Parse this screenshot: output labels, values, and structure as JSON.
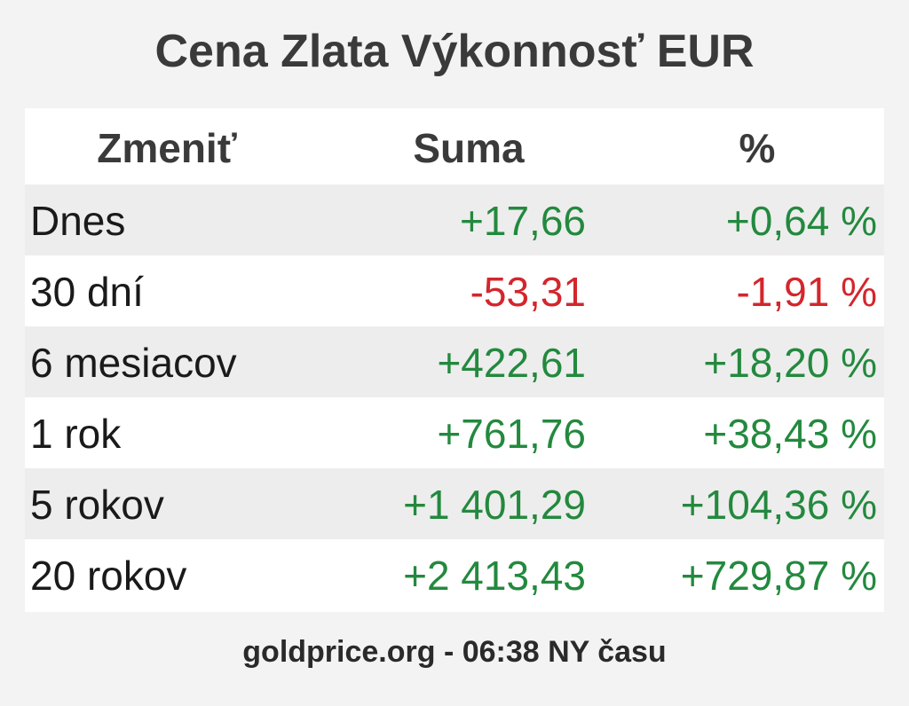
{
  "header": {
    "title": "Cena Zlata Výkonnosť EUR"
  },
  "table": {
    "columns": [
      "Zmeniť",
      "Suma",
      "%"
    ],
    "rows": [
      [
        "Dnes",
        "+17,66",
        "+0,64 %"
      ],
      [
        "30 dní",
        "-53,31",
        "-1,91 %"
      ],
      [
        "6 mesiacov",
        "+422,61",
        "+18,20 %"
      ],
      [
        "1 rok",
        "+761,76",
        "+38,43 %"
      ],
      [
        "5 rokov",
        "+1 401,29",
        "+104,36 %"
      ],
      [
        "20 rokov",
        "+2 413,43",
        "+729,87 %"
      ]
    ],
    "colors": {
      "positive": "#23893e",
      "negative": "#d3262c",
      "label": "#1a1a1a"
    }
  },
  "footer": {
    "text": "goldprice.org - 06:38 NY času"
  }
}
